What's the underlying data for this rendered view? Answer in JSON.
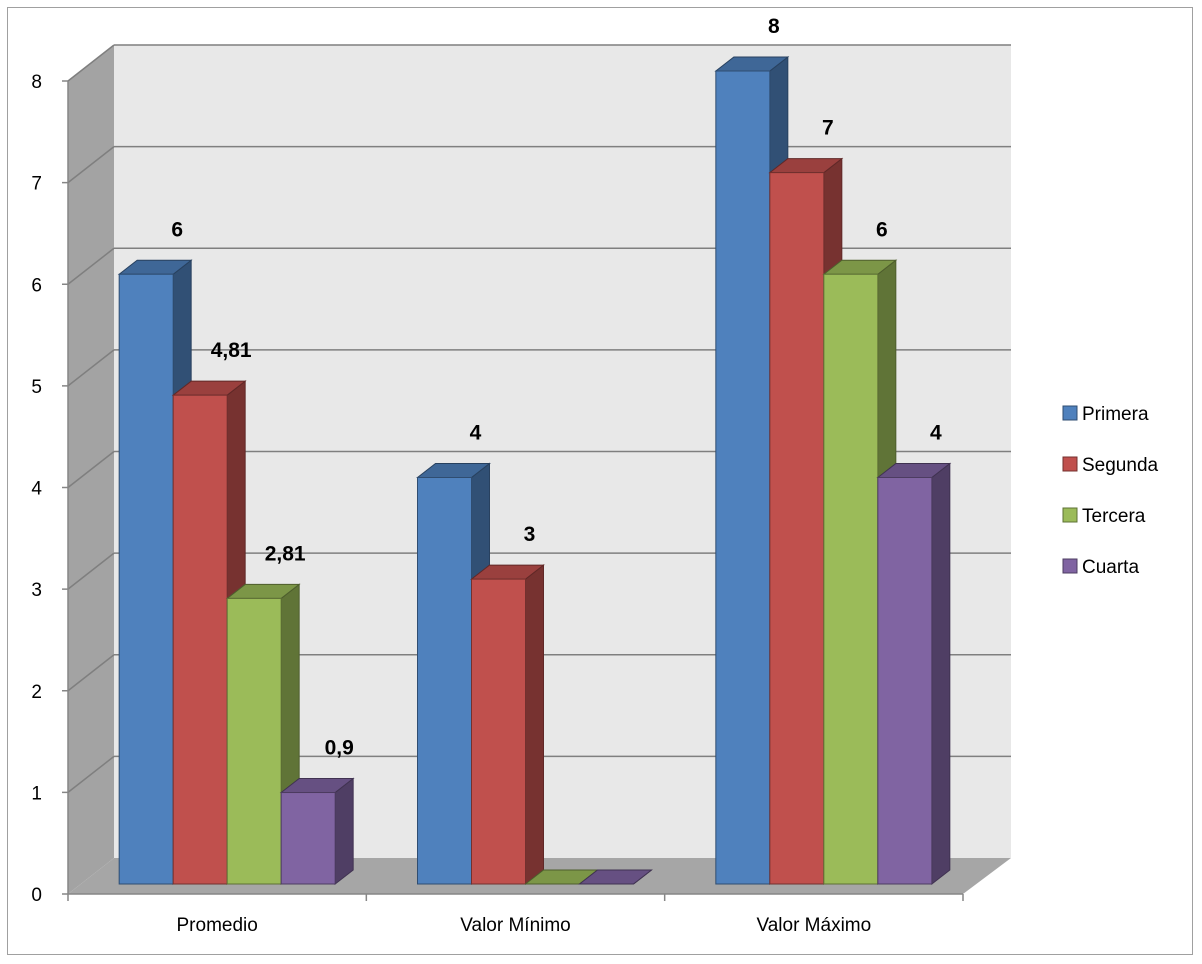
{
  "chart_data": {
    "type": "bar",
    "categories": [
      "Promedio",
      "Valor Mínimo",
      "Valor Máximo"
    ],
    "series": [
      {
        "name": "Primera",
        "color": "#4F81BD",
        "values": [
          6,
          4,
          8
        ],
        "labels": [
          "6",
          "4",
          "8"
        ]
      },
      {
        "name": "Segunda",
        "color": "#C0504D",
        "values": [
          4.81,
          3,
          7
        ],
        "labels": [
          "4,81",
          "3",
          "7"
        ]
      },
      {
        "name": "Tercera",
        "color": "#9BBB59",
        "values": [
          2.81,
          0,
          6
        ],
        "labels": [
          "2,81",
          "",
          "6"
        ]
      },
      {
        "name": "Cuarta",
        "color": "#8064A2",
        "values": [
          0.9,
          0,
          4
        ],
        "labels": [
          "0,9",
          "",
          "4"
        ]
      }
    ],
    "yticks": [
      "0",
      "1",
      "2",
      "3",
      "4",
      "5",
      "6",
      "7",
      "8"
    ],
    "ylim": [
      0,
      8
    ],
    "grid": true,
    "legend": "right",
    "style": "3d-clustered-column"
  }
}
